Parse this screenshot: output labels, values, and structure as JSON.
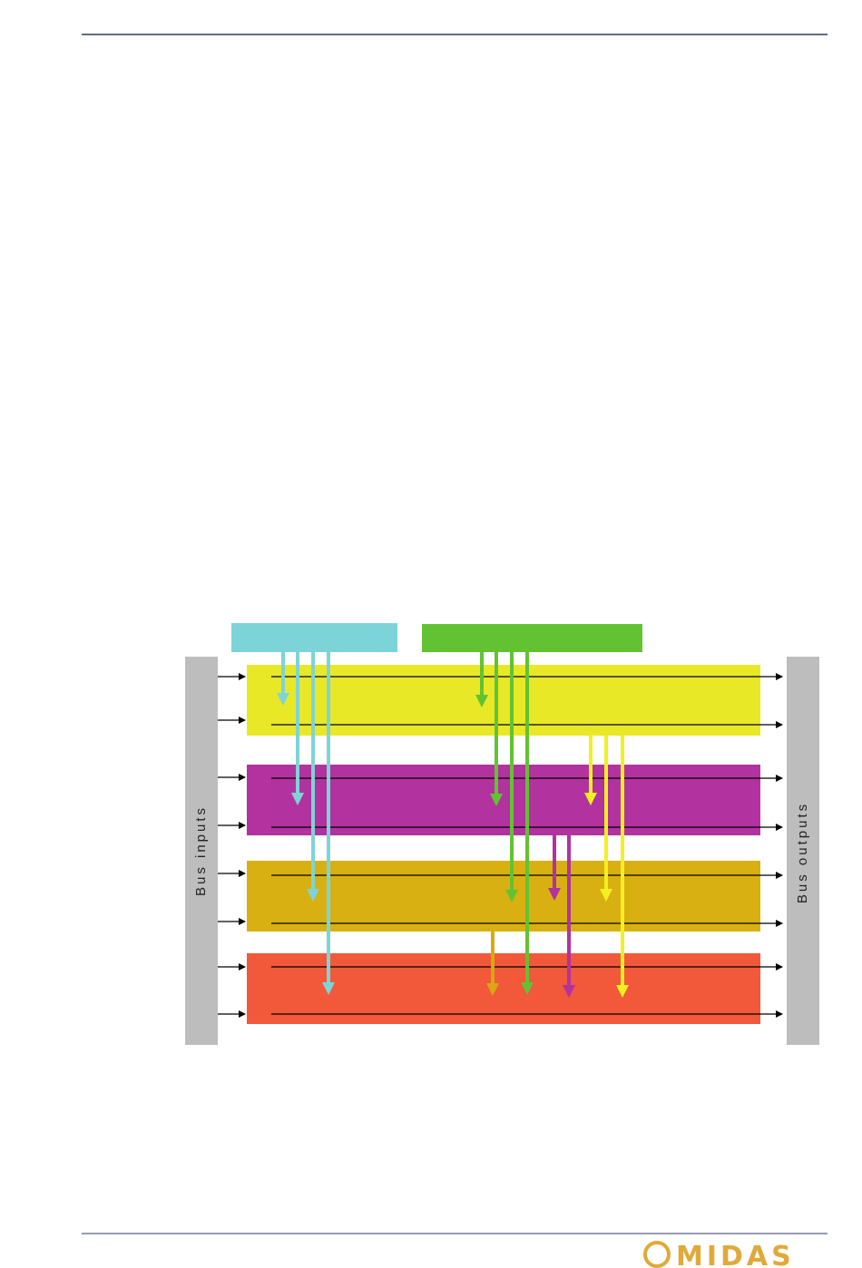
{
  "diagram": {
    "labels": {
      "bus_inputs": "Bus inputs",
      "bus_outputs": "Bus outputs"
    }
  },
  "footer": {
    "logo": "MIDAS"
  }
}
